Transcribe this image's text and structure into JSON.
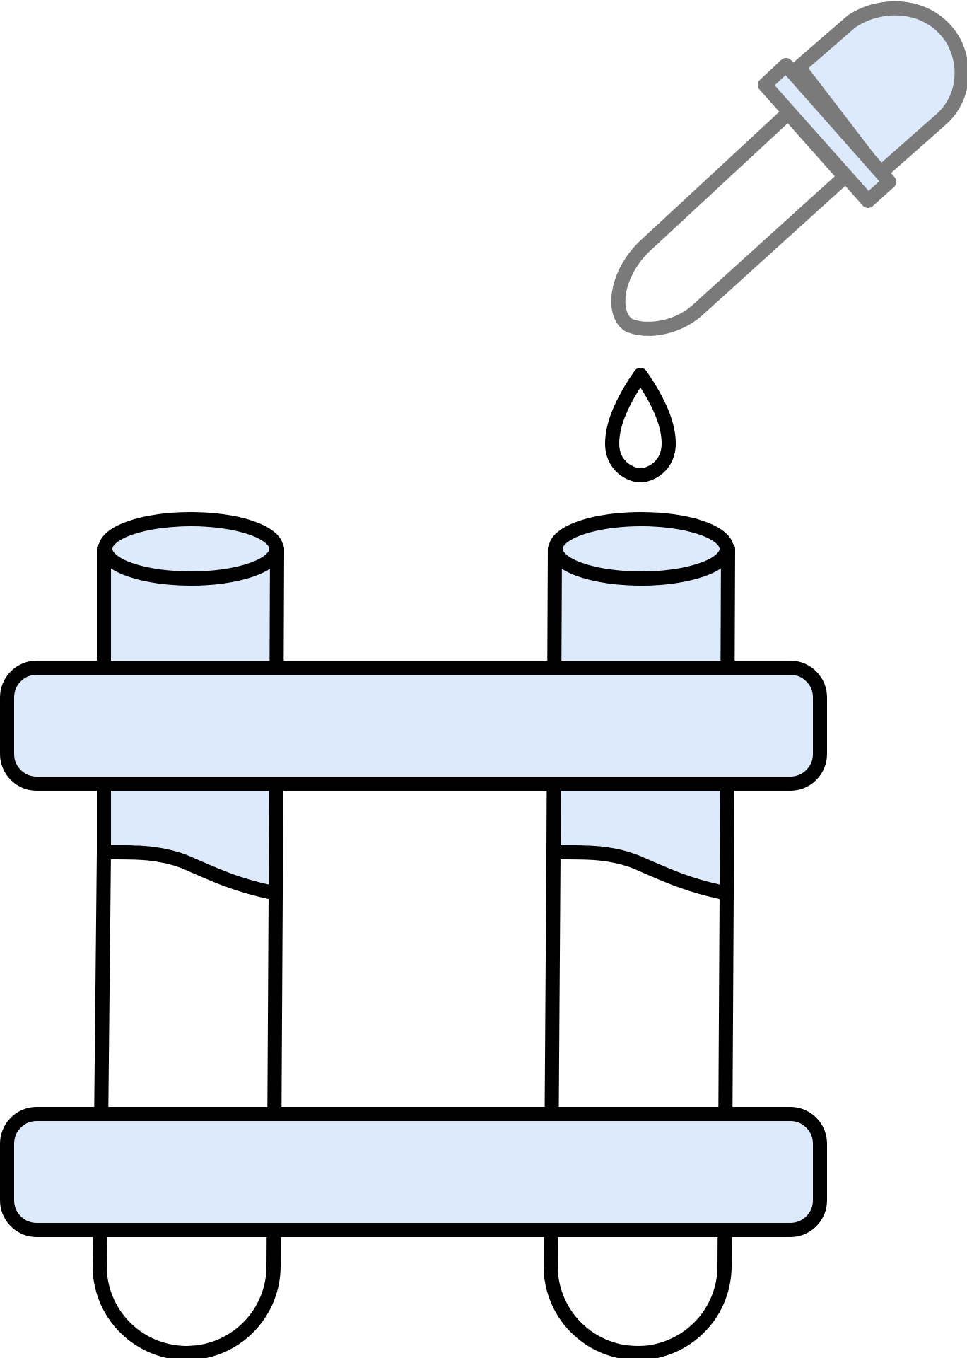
{
  "illustration": {
    "subject": "test-tubes-rack-with-dropper",
    "colors": {
      "fill": "#ddeafc",
      "stroke": "#000000",
      "dropper_stroke": "#7a7a7a",
      "background": "#ffffff"
    },
    "parts": [
      "dropper-icon",
      "drop-icon",
      "test-tube-icon",
      "test-tube-icon",
      "rack-bar",
      "rack-bar"
    ]
  }
}
